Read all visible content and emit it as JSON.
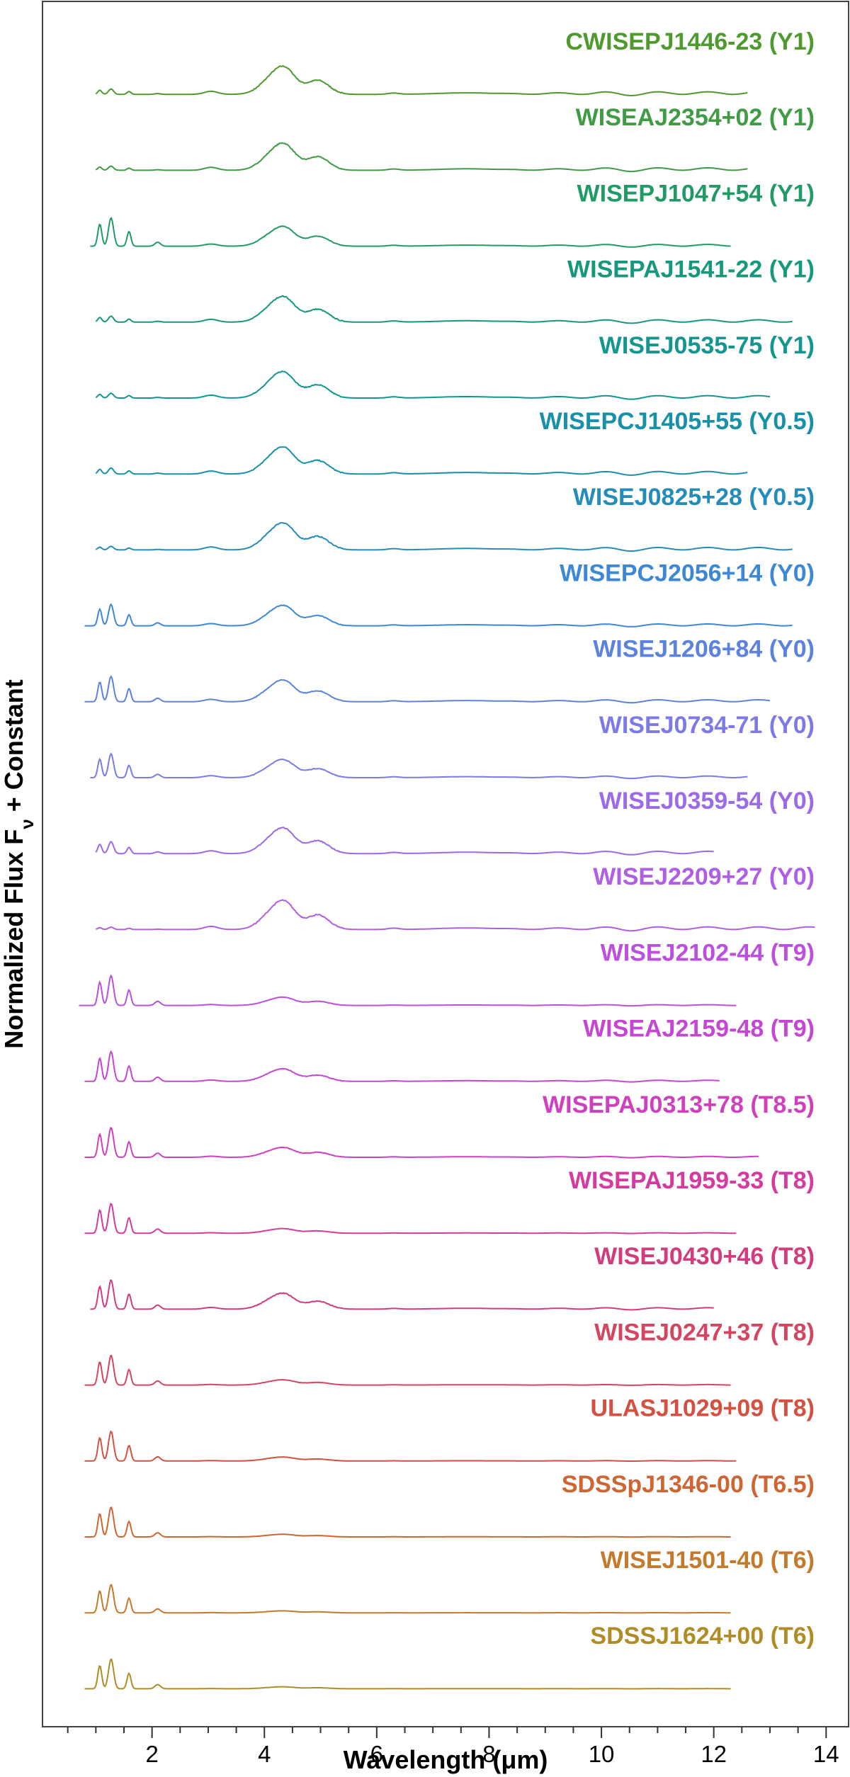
{
  "chart_data": {
    "type": "line",
    "title": "",
    "xlabel": "Wavelength (μm)",
    "ylabel": "Normalized Flux F",
    "ylabel_sub": "ν",
    "ylabel_suffix": " + Constant",
    "xlim": [
      0.05,
      14.4
    ],
    "x_ticks": [
      2,
      4,
      6,
      8,
      10,
      12,
      14
    ],
    "x_tick_labels": [
      "2",
      "4",
      "6",
      "8",
      "10",
      "12",
      "14"
    ],
    "series": [
      {
        "name": "CWISEPJ1446-23 (Y1)",
        "color": "#4f9a2f",
        "x_start": 1.0,
        "x_end": 12.6,
        "nir": 0.18,
        "mir": 0.85,
        "noise": 0.6
      },
      {
        "name": "WISEAJ2354+02 (Y1)",
        "color": "#3f9c44",
        "x_start": 1.0,
        "x_end": 12.6,
        "nir": 0.14,
        "mir": 0.82,
        "noise": 0.5
      },
      {
        "name": "WISEPJ1047+54 (Y1)",
        "color": "#219b66",
        "x_start": 0.9,
        "x_end": 12.3,
        "nir": 0.95,
        "mir": 0.6,
        "noise": 0.3
      },
      {
        "name": "WISEPAJ1541-22 (Y1)",
        "color": "#15987c",
        "x_start": 1.0,
        "x_end": 13.4,
        "nir": 0.2,
        "mir": 0.78,
        "noise": 0.55
      },
      {
        "name": "WISEJ0535-75 (Y1)",
        "color": "#13968f",
        "x_start": 1.0,
        "x_end": 13.0,
        "nir": 0.16,
        "mir": 0.8,
        "noise": 0.5
      },
      {
        "name": "WISEPCJ1405+55 (Y0.5)",
        "color": "#1891a8",
        "x_start": 1.0,
        "x_end": 12.6,
        "nir": 0.2,
        "mir": 0.82,
        "noise": 0.5
      },
      {
        "name": "WISEJ0825+28 (Y0.5)",
        "color": "#248cba",
        "x_start": 1.0,
        "x_end": 13.4,
        "nir": 0.12,
        "mir": 0.82,
        "noise": 0.55
      },
      {
        "name": "WISEPCJ2056+14 (Y0)",
        "color": "#3d88d6",
        "x_start": 0.8,
        "x_end": 13.4,
        "nir": 0.72,
        "mir": 0.62,
        "noise": 0.35
      },
      {
        "name": "WISEJ1206+84 (Y0)",
        "color": "#5c82e0",
        "x_start": 0.8,
        "x_end": 13.0,
        "nir": 0.85,
        "mir": 0.66,
        "noise": 0.35
      },
      {
        "name": "WISEJ0734-71 (Y0)",
        "color": "#7b7ae8",
        "x_start": 0.9,
        "x_end": 12.6,
        "nir": 0.8,
        "mir": 0.55,
        "noise": 0.35
      },
      {
        "name": "WISEJ0359-54 (Y0)",
        "color": "#9a6ae8",
        "x_start": 1.0,
        "x_end": 12.0,
        "nir": 0.4,
        "mir": 0.78,
        "noise": 0.45
      },
      {
        "name": "WISEJ2209+27 (Y0)",
        "color": "#b05ee6",
        "x_start": 1.0,
        "x_end": 13.8,
        "nir": 0.08,
        "mir": 0.88,
        "noise": 0.6
      },
      {
        "name": "WISEJ2102-44 (T9)",
        "color": "#bb4fde",
        "x_start": 0.7,
        "x_end": 12.4,
        "nir": 1.0,
        "mir": 0.25,
        "noise": 0.2
      },
      {
        "name": "WISEAJ2159-48 (T9)",
        "color": "#c546d2",
        "x_start": 0.8,
        "x_end": 12.1,
        "nir": 1.0,
        "mir": 0.38,
        "noise": 0.3
      },
      {
        "name": "WISEPAJ0313+78 (T8.5)",
        "color": "#cf3fbe",
        "x_start": 0.8,
        "x_end": 12.8,
        "nir": 1.0,
        "mir": 0.3,
        "noise": 0.25
      },
      {
        "name": "WISEPAJ1959-33 (T8)",
        "color": "#d53a9e",
        "x_start": 0.8,
        "x_end": 12.4,
        "nir": 1.0,
        "mir": 0.14,
        "noise": 0.12
      },
      {
        "name": "WISEJ0430+46 (T8)",
        "color": "#d43b7c",
        "x_start": 0.9,
        "x_end": 12.0,
        "nir": 0.98,
        "mir": 0.48,
        "noise": 0.45
      },
      {
        "name": "WISEJ0247+37 (T8)",
        "color": "#d44660",
        "x_start": 0.8,
        "x_end": 12.3,
        "nir": 1.0,
        "mir": 0.16,
        "noise": 0.12
      },
      {
        "name": "ULASJ1029+09 (T8)",
        "color": "#d45142",
        "x_start": 0.8,
        "x_end": 12.4,
        "nir": 1.0,
        "mir": 0.12,
        "noise": 0.1
      },
      {
        "name": "SDSSpJ1346-00 (T6.5)",
        "color": "#cf6532",
        "x_start": 0.8,
        "x_end": 12.3,
        "nir": 1.0,
        "mir": 0.08,
        "noise": 0.06
      },
      {
        "name": "WISEJ1501-40 (T6)",
        "color": "#c47a2c",
        "x_start": 0.8,
        "x_end": 12.3,
        "nir": 0.95,
        "mir": 0.06,
        "noise": 0.05
      },
      {
        "name": "SDSSJ1624+00 (T6)",
        "color": "#b08c25",
        "x_start": 0.8,
        "x_end": 12.3,
        "nir": 1.0,
        "mir": 0.06,
        "noise": 0.05
      }
    ]
  }
}
